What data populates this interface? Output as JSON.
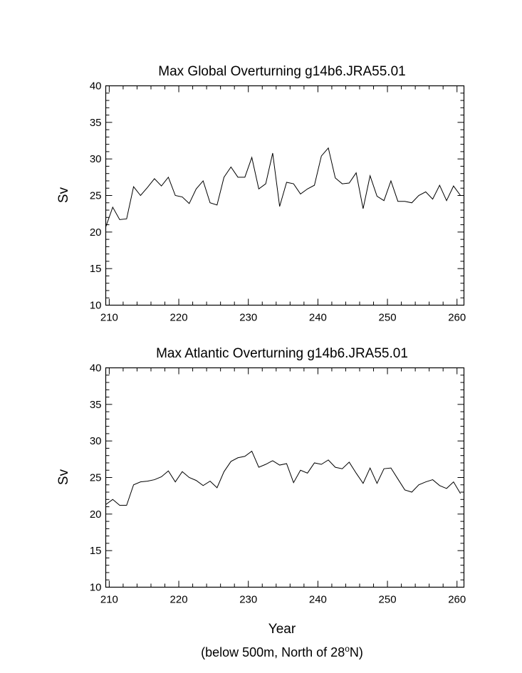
{
  "chart_data": [
    {
      "type": "line",
      "title": "Max Global Overturning g14b6.JRA55.01",
      "ylabel": "Sv",
      "xlabel": "",
      "xlim": [
        209.5,
        261
      ],
      "ylim": [
        10,
        40
      ],
      "xticks": [
        210,
        220,
        230,
        240,
        250,
        260
      ],
      "yticks": [
        10,
        15,
        20,
        25,
        30,
        35,
        40
      ],
      "grid": false,
      "series": [
        {
          "x": [
            209.5,
            210.5,
            211.5,
            212.5,
            213.5,
            214.5,
            215.5,
            216.5,
            217.5,
            218.5,
            219.5,
            220.5,
            221.5,
            222.5,
            223.5,
            224.5,
            225.5,
            226.5,
            227.5,
            228.5,
            229.5,
            230.5,
            231.5,
            232.5,
            233.5,
            234.5,
            235.5,
            236.5,
            237.5,
            238.5,
            239.5,
            240.5,
            241.5,
            242.5,
            243.5,
            244.5,
            245.5,
            246.5,
            247.5,
            248.5,
            249.5,
            250.5,
            251.5,
            252.5,
            253.5,
            254.5,
            255.5,
            256.5,
            257.5,
            258.5,
            259.5,
            260.5
          ],
          "values": [
            20.7,
            23.4,
            21.7,
            21.8,
            26.2,
            25.0,
            26.1,
            27.3,
            26.3,
            27.5,
            25.0,
            24.8,
            23.9,
            25.9,
            27.0,
            24.0,
            23.7,
            27.5,
            28.9,
            27.5,
            27.5,
            30.2,
            25.9,
            26.6,
            30.8,
            23.5,
            26.8,
            26.6,
            25.2,
            25.9,
            26.4,
            30.4,
            31.5,
            27.4,
            26.6,
            26.7,
            28.1,
            23.2,
            27.7,
            24.9,
            24.3,
            27.0,
            24.2,
            24.2,
            24.0,
            25.0,
            25.5,
            24.5,
            26.4,
            24.3,
            26.3,
            25.0
          ]
        }
      ]
    },
    {
      "type": "line",
      "title": "Max Atlantic Overturning g14b6.JRA55.01",
      "ylabel": "Sv",
      "xlabel": "Year",
      "xlim": [
        209.5,
        261
      ],
      "ylim": [
        10,
        40
      ],
      "xticks": [
        210,
        220,
        230,
        240,
        250,
        260
      ],
      "yticks": [
        10,
        15,
        20,
        25,
        30,
        35,
        40
      ],
      "grid": false,
      "series": [
        {
          "x": [
            209.5,
            210.5,
            211.5,
            212.5,
            213.5,
            214.5,
            215.5,
            216.5,
            217.5,
            218.5,
            219.5,
            220.5,
            221.5,
            222.5,
            223.5,
            224.5,
            225.5,
            226.5,
            227.5,
            228.5,
            229.5,
            230.5,
            231.5,
            232.5,
            233.5,
            234.5,
            235.5,
            236.5,
            237.5,
            238.5,
            239.5,
            240.5,
            241.5,
            242.5,
            243.5,
            244.5,
            245.5,
            246.5,
            247.5,
            248.5,
            249.5,
            250.5,
            251.5,
            252.5,
            253.5,
            254.5,
            255.5,
            256.5,
            257.5,
            258.5,
            259.5,
            260.5
          ],
          "values": [
            21.3,
            22.0,
            21.2,
            21.2,
            24.0,
            24.4,
            24.5,
            24.7,
            25.1,
            25.9,
            24.4,
            25.8,
            25.0,
            24.6,
            23.9,
            24.5,
            23.6,
            25.8,
            27.2,
            27.7,
            27.9,
            28.6,
            26.4,
            26.8,
            27.3,
            26.7,
            26.9,
            24.3,
            26.0,
            25.6,
            27.0,
            26.8,
            27.4,
            26.4,
            26.2,
            27.1,
            25.6,
            24.2,
            26.3,
            24.2,
            26.2,
            26.3,
            24.8,
            23.3,
            23.0,
            24.0,
            24.4,
            24.7,
            23.9,
            23.5,
            24.4,
            22.8
          ]
        }
      ]
    }
  ],
  "caption": {
    "prefix": "(below 500m, North of 28",
    "superscript": "o",
    "suffix": "N)"
  }
}
